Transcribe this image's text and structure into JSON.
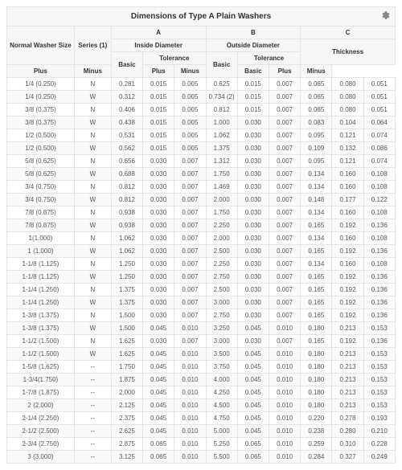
{
  "title": "Dimensions of Type A Plain Washers",
  "header": {
    "groupA": "A",
    "groupB": "B",
    "groupC": "C",
    "size": "Normal Washer Size",
    "series": "Series (1)",
    "inside": "Inside Diameter",
    "outside": "Outside Diameter",
    "thickness": "Thickness",
    "basic": "Basic",
    "tolerance": "Tolerance",
    "plus": "Plus",
    "minus": "Minus"
  },
  "rows": [
    {
      "size": "1/4 (0.250)",
      "series": "N",
      "a_basic": "0.281",
      "a_plus": "0.015",
      "a_minus": "0.005",
      "b_basic": "0.625",
      "b_plus": "0.015",
      "b_minus": "0.007",
      "c_basic": "0.065",
      "c_plus": "0.080",
      "c_minus": "0.051"
    },
    {
      "size": "1/4 (0.250)",
      "series": "W",
      "a_basic": "0.312",
      "a_plus": "0.015",
      "a_minus": "0.005",
      "b_basic": "0.734 (2)",
      "b_plus": "0.015",
      "b_minus": "0.007",
      "c_basic": "0.065",
      "c_plus": "0.080",
      "c_minus": "0.051"
    },
    {
      "size": "3/8 (0.375)",
      "series": "N",
      "a_basic": "0.406",
      "a_plus": "0.015",
      "a_minus": "0.005",
      "b_basic": "0.812",
      "b_plus": "0.015",
      "b_minus": "0.007",
      "c_basic": "0.065",
      "c_plus": "0.080",
      "c_minus": "0.051"
    },
    {
      "size": "3/8 (0.375)",
      "series": "W",
      "a_basic": "0.438",
      "a_plus": "0.015",
      "a_minus": "0.005",
      "b_basic": "1.000",
      "b_plus": "0.030",
      "b_minus": "0.007",
      "c_basic": "0.083",
      "c_plus": "0.104",
      "c_minus": "0.064"
    },
    {
      "size": "1/2 (0.500)",
      "series": "N",
      "a_basic": "0.531",
      "a_plus": "0.015",
      "a_minus": "0.005",
      "b_basic": "1.062",
      "b_plus": "0.030",
      "b_minus": "0.007",
      "c_basic": "0.095",
      "c_plus": "0.121",
      "c_minus": "0.074"
    },
    {
      "size": "1/2 (0.500)",
      "series": "W",
      "a_basic": "0.562",
      "a_plus": "0.015",
      "a_minus": "0.005",
      "b_basic": "1.375",
      "b_plus": "0.030",
      "b_minus": "0.007",
      "c_basic": "0.109",
      "c_plus": "0.132",
      "c_minus": "0.086"
    },
    {
      "size": "5/8 (0.625)",
      "series": "N",
      "a_basic": "0.656",
      "a_plus": "0.030",
      "a_minus": "0.007",
      "b_basic": "1.312",
      "b_plus": "0.030",
      "b_minus": "0.007",
      "c_basic": "0.095",
      "c_plus": "0.121",
      "c_minus": "0.074"
    },
    {
      "size": "5/8 (0.625)",
      "series": "W",
      "a_basic": "0.688",
      "a_plus": "0.030",
      "a_minus": "0.007",
      "b_basic": "1.750",
      "b_plus": "0.030",
      "b_minus": "0.007",
      "c_basic": "0.134",
      "c_plus": "0.160",
      "c_minus": "0.108"
    },
    {
      "size": "3/4 (0.750)",
      "series": "N",
      "a_basic": "0.812",
      "a_plus": "0.030",
      "a_minus": "0.007",
      "b_basic": "1.469",
      "b_plus": "0.030",
      "b_minus": "0.007",
      "c_basic": "0.134",
      "c_plus": "0.160",
      "c_minus": "0.108"
    },
    {
      "size": "3/4 (0.750)",
      "series": "W",
      "a_basic": "0.812",
      "a_plus": "0.030",
      "a_minus": "0.007",
      "b_basic": "2.000",
      "b_plus": "0.030",
      "b_minus": "0.007",
      "c_basic": "0.148",
      "c_plus": "0.177",
      "c_minus": "0.122"
    },
    {
      "size": "7/8 (0.875)",
      "series": "N",
      "a_basic": "0.938",
      "a_plus": "0.030",
      "a_minus": "0.007",
      "b_basic": "1.750",
      "b_plus": "0.030",
      "b_minus": "0.007",
      "c_basic": "0.134",
      "c_plus": "0.160",
      "c_minus": "0.108"
    },
    {
      "size": "7/8 (0.875)",
      "series": "W",
      "a_basic": "0.938",
      "a_plus": "0.030",
      "a_minus": "0.007",
      "b_basic": "2.250",
      "b_plus": "0.030",
      "b_minus": "0.007",
      "c_basic": "0.165",
      "c_plus": "0.192",
      "c_minus": "0.136"
    },
    {
      "size": "1(1.000)",
      "series": "N",
      "a_basic": "1.062",
      "a_plus": "0.030",
      "a_minus": "0.007",
      "b_basic": "2.000",
      "b_plus": "0.030",
      "b_minus": "0.007",
      "c_basic": "0.134",
      "c_plus": "0.160",
      "c_minus": "0.108"
    },
    {
      "size": "1 (1.000)",
      "series": "W",
      "a_basic": "1.062",
      "a_plus": "0.030",
      "a_minus": "0.007",
      "b_basic": "2.500",
      "b_plus": "0.030",
      "b_minus": "0.007",
      "c_basic": "0.165",
      "c_plus": "0.192",
      "c_minus": "0.136"
    },
    {
      "size": "1-1/8 (1.125)",
      "series": "N",
      "a_basic": "1.250",
      "a_plus": "0.030",
      "a_minus": "0.007",
      "b_basic": "2.250",
      "b_plus": "0.030",
      "b_minus": "0.007",
      "c_basic": "0.134",
      "c_plus": "0.160",
      "c_minus": "0.108"
    },
    {
      "size": "1-1/8 (1.125)",
      "series": "W",
      "a_basic": "1.250",
      "a_plus": "0.030",
      "a_minus": "0.007",
      "b_basic": "2.750",
      "b_plus": "0.030",
      "b_minus": "0.007",
      "c_basic": "0.165",
      "c_plus": "0.192",
      "c_minus": "0.136"
    },
    {
      "size": "1-1/4 (1.250)",
      "series": "N",
      "a_basic": "1.375",
      "a_plus": "0.030",
      "a_minus": "0.007",
      "b_basic": "2.500",
      "b_plus": "0.030",
      "b_minus": "0.007",
      "c_basic": "0.165",
      "c_plus": "0.192",
      "c_minus": "0.136"
    },
    {
      "size": "1-1/4 (1.250)",
      "series": "W",
      "a_basic": "1.375",
      "a_plus": "0.030",
      "a_minus": "0.007",
      "b_basic": "3.000",
      "b_plus": "0.030",
      "b_minus": "0.007",
      "c_basic": "0.165",
      "c_plus": "0.192",
      "c_minus": "0.136"
    },
    {
      "size": "1-3/8 (1.375)",
      "series": "N",
      "a_basic": "1.500",
      "a_plus": "0.030",
      "a_minus": "0.007",
      "b_basic": "2.750",
      "b_plus": "0.030",
      "b_minus": "0.007",
      "c_basic": "0.165",
      "c_plus": "0.192",
      "c_minus": "0.136"
    },
    {
      "size": "1-3/8 (1.375)",
      "series": "W",
      "a_basic": "1.500",
      "a_plus": "0.045",
      "a_minus": "0.010",
      "b_basic": "3.250",
      "b_plus": "0.045",
      "b_minus": "0.010",
      "c_basic": "0.180",
      "c_plus": "0.213",
      "c_minus": "0.153"
    },
    {
      "size": "1-1/2 (1.500)",
      "series": "N",
      "a_basic": "1.625",
      "a_plus": "0.030",
      "a_minus": "0.007",
      "b_basic": "3.000",
      "b_plus": "0.030",
      "b_minus": "0.007",
      "c_basic": "0.165",
      "c_plus": "0.192",
      "c_minus": "0.136"
    },
    {
      "size": "1-1/2 (1.500)",
      "series": "W",
      "a_basic": "1.625",
      "a_plus": "0.045",
      "a_minus": "0.010",
      "b_basic": "3.500",
      "b_plus": "0.045",
      "b_minus": "0.010",
      "c_basic": "0.180",
      "c_plus": "0.213",
      "c_minus": "0.153"
    },
    {
      "size": "1-5/8 (1.625)",
      "series": "--",
      "a_basic": "1.750",
      "a_plus": "0.045",
      "a_minus": "0.010",
      "b_basic": "3.750",
      "b_plus": "0.045",
      "b_minus": "0.010",
      "c_basic": "0.180",
      "c_plus": "0.213",
      "c_minus": "0.153"
    },
    {
      "size": "1-3/4(1.750)",
      "series": "--",
      "a_basic": "1.875",
      "a_plus": "0.045",
      "a_minus": "0.010",
      "b_basic": "4.000",
      "b_plus": "0.045",
      "b_minus": "0.010",
      "c_basic": "0.180",
      "c_plus": "0.213",
      "c_minus": "0.153"
    },
    {
      "size": "1-7/8 (1.875)",
      "series": "--",
      "a_basic": "2.000",
      "a_plus": "0.045",
      "a_minus": "0.010",
      "b_basic": "4.250",
      "b_plus": "0.045",
      "b_minus": "0.010",
      "c_basic": "0.180",
      "c_plus": "0.213",
      "c_minus": "0.153"
    },
    {
      "size": "2 (2.000)",
      "series": "--",
      "a_basic": "2.125",
      "a_plus": "0.045",
      "a_minus": "0.010",
      "b_basic": "4.500",
      "b_plus": "0.045",
      "b_minus": "0.010",
      "c_basic": "0.180",
      "c_plus": "0.213",
      "c_minus": "0.153"
    },
    {
      "size": "2-1/4 (2.250)",
      "series": "--",
      "a_basic": "2.375",
      "a_plus": "0.045",
      "a_minus": "0.010",
      "b_basic": "4.750",
      "b_plus": "0.045",
      "b_minus": "0.010",
      "c_basic": "0.220",
      "c_plus": "0.278",
      "c_minus": "0.193"
    },
    {
      "size": "2-1/2 (2.500)",
      "series": "--",
      "a_basic": "2.625",
      "a_plus": "0.045",
      "a_minus": "0.010",
      "b_basic": "5.000",
      "b_plus": "0.045",
      "b_minus": "0.010",
      "c_basic": "0.238",
      "c_plus": "0.280",
      "c_minus": "0.210"
    },
    {
      "size": "2-3/4 (2.750)",
      "series": "--",
      "a_basic": "2.875",
      "a_plus": "0.065",
      "a_minus": "0.010",
      "b_basic": "5.250",
      "b_plus": "0.065",
      "b_minus": "0.010",
      "c_basic": "0.259",
      "c_plus": "0.310",
      "c_minus": "0.228"
    },
    {
      "size": "3 (3.000)",
      "series": "--",
      "a_basic": "3.125",
      "a_plus": "0.065",
      "a_minus": "0.010",
      "b_basic": "5.500",
      "b_plus": "0.065",
      "b_minus": "0.010",
      "c_basic": "0.284",
      "c_plus": "0.327",
      "c_minus": "0.249"
    }
  ]
}
